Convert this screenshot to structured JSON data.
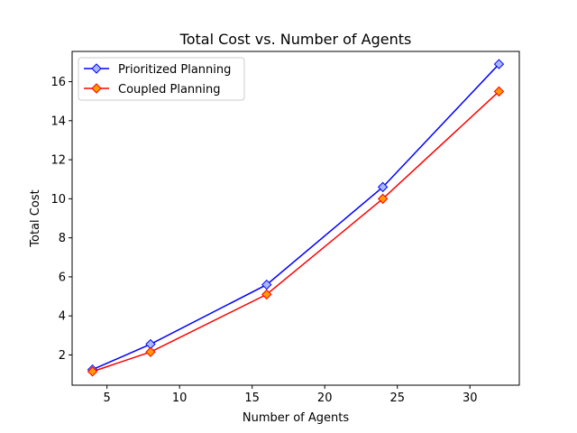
{
  "chart_data": {
    "type": "line",
    "title": "Total Cost vs. Number of Agents",
    "xlabel": "Number of Agents",
    "ylabel": "Total Cost",
    "xlim": [
      2.6,
      33.4
    ],
    "ylim": [
      0.45,
      17.55
    ],
    "xticks": [
      5,
      10,
      15,
      20,
      25,
      30
    ],
    "yticks": [
      2,
      4,
      6,
      8,
      10,
      12,
      14,
      16
    ],
    "x": [
      4,
      8,
      16,
      24,
      32
    ],
    "series": [
      {
        "name": "Prioritized Planning",
        "values": [
          1.25,
          2.55,
          5.6,
          10.6,
          16.9
        ],
        "line_color": "#0000ff",
        "marker": "diamond",
        "marker_fill": "#a8b8f0",
        "marker_edge": "#0000ff"
      },
      {
        "name": "Coupled Planning",
        "values": [
          1.15,
          2.15,
          5.1,
          10.0,
          15.5
        ],
        "line_color": "#ff0000",
        "marker": "diamond",
        "marker_fill": "#ff9900",
        "marker_edge": "#ff0000"
      }
    ],
    "legend": {
      "position": "top-left"
    },
    "grid": false
  }
}
